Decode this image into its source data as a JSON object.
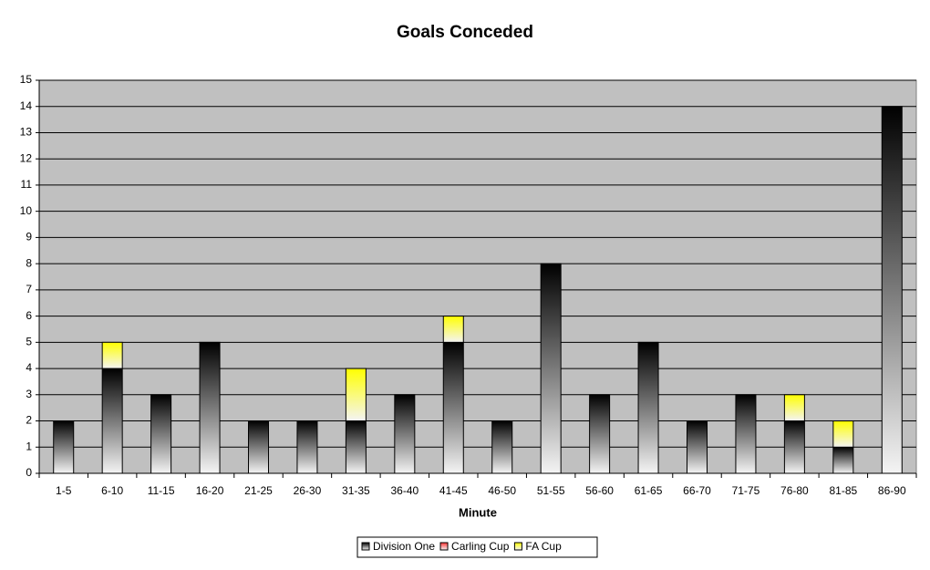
{
  "chart_data": {
    "type": "stacked_bar",
    "title": "Goals Conceded",
    "x_label": "Minute",
    "categories": [
      "1-5",
      "6-10",
      "11-15",
      "16-20",
      "21-25",
      "26-30",
      "31-35",
      "36-40",
      "41-45",
      "46-50",
      "51-55",
      "56-60",
      "61-65",
      "66-70",
      "71-75",
      "76-80",
      "81-85",
      "86-90"
    ],
    "series": [
      {
        "name": "Division One",
        "color": "#000000",
        "values": [
          2,
          4,
          3,
          5,
          2,
          2,
          2,
          3,
          5,
          2,
          8,
          3,
          5,
          2,
          3,
          2,
          1,
          14
        ]
      },
      {
        "name": "Carling Cup",
        "color": "#ff3333",
        "values": [
          0,
          0,
          0,
          0,
          0,
          0,
          0,
          0,
          0,
          0,
          0,
          0,
          0,
          0,
          0,
          0,
          0,
          0
        ]
      },
      {
        "name": "FA Cup",
        "color": "#ffff00",
        "values": [
          0,
          1,
          0,
          0,
          0,
          0,
          2,
          0,
          1,
          0,
          0,
          0,
          0,
          0,
          0,
          1,
          1,
          0
        ]
      }
    ],
    "ylim": [
      0,
      15
    ],
    "yticks": [
      0,
      1,
      2,
      3,
      4,
      5,
      6,
      7,
      8,
      9,
      10,
      11,
      12,
      13,
      14,
      15
    ],
    "grid": true,
    "legend": "bottom",
    "background": "#c0c0c0"
  }
}
